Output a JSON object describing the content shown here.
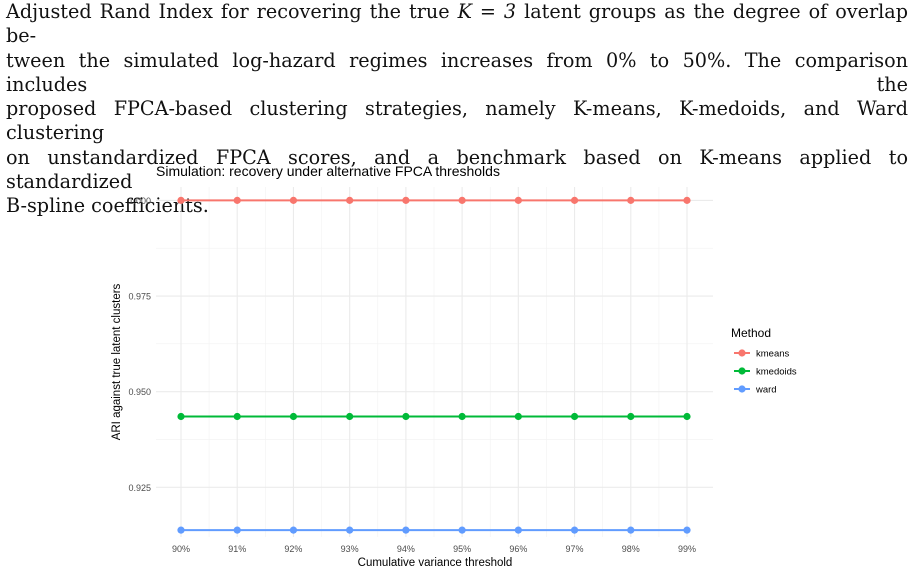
{
  "caption": {
    "line1_pre": "Adjusted Rand Index for recovering the true ",
    "line1_math": "K = 3",
    "line1_post": " latent groups as the degree of overlap be-",
    "line2": "tween the simulated log-hazard regimes increases from 0% to 50%. The comparison includes the",
    "line3": "proposed FPCA-based clustering strategies, namely K-means, K-medoids, and Ward clustering",
    "line4": "on unstandardized FPCA scores, and a benchmark based on K-means applied to standardized",
    "line5": "B-spline coefficients."
  },
  "chart_data": {
    "type": "line",
    "title": "Simulation: recovery under alternative FPCA thresholds",
    "xlabel": "Cumulative variance threshold",
    "ylabel": "ARI against true latent clusters",
    "categories": [
      "90%",
      "91%",
      "92%",
      "93%",
      "94%",
      "95%",
      "96%",
      "97%",
      "98%",
      "99%"
    ],
    "y_ticks": [
      "0.925",
      "0.950",
      "0.975",
      "1.000"
    ],
    "ylim": [
      0.912,
      1.0035
    ],
    "grid": true,
    "legend": {
      "title": "Method",
      "placement": "right"
    },
    "series": [
      {
        "name": "kmeans",
        "color": "#F8766D",
        "values": [
          1.0,
          1.0,
          1.0,
          1.0,
          1.0,
          1.0,
          1.0,
          1.0,
          1.0,
          1.0
        ]
      },
      {
        "name": "kmedoids",
        "color": "#00BA38",
        "values": [
          0.9435,
          0.9435,
          0.9435,
          0.9435,
          0.9435,
          0.9435,
          0.9435,
          0.9435,
          0.9435,
          0.9435
        ]
      },
      {
        "name": "ward",
        "color": "#619CFF",
        "values": [
          0.9138,
          0.9138,
          0.9138,
          0.9138,
          0.9138,
          0.9138,
          0.9138,
          0.9138,
          0.9138,
          0.9138
        ]
      }
    ]
  }
}
